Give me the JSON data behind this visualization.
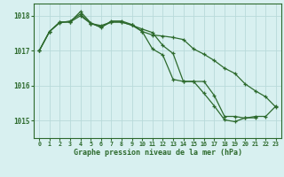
{
  "xlabel": "Graphe pression niveau de la mer (hPa)",
  "hours": [
    0,
    1,
    2,
    3,
    4,
    5,
    6,
    7,
    8,
    9,
    10,
    11,
    12,
    13,
    14,
    15,
    16,
    17,
    18,
    19,
    20,
    21,
    22,
    23
  ],
  "curve1": [
    1017.0,
    1017.55,
    1017.8,
    1017.85,
    1018.05,
    1017.78,
    1017.68,
    1017.82,
    1017.82,
    1017.73,
    1017.55,
    1017.45,
    1017.42,
    1017.38,
    1017.32,
    1017.05,
    1016.9,
    1016.72,
    1016.5,
    1016.35,
    1016.05,
    1015.85,
    1015.68,
    1015.38
  ],
  "curve2": [
    1017.0,
    1017.55,
    1017.82,
    1017.82,
    1018.12,
    1017.8,
    1017.66,
    1017.85,
    1017.85,
    1017.75,
    1017.55,
    1017.05,
    1016.88,
    1016.18,
    1016.12,
    1016.12,
    1015.78,
    1015.42,
    1015.02,
    1014.97,
    1015.08,
    1015.08,
    null,
    null
  ],
  "curve3": [
    1017.0,
    1017.55,
    1017.82,
    1017.82,
    1018.0,
    1017.78,
    1017.72,
    1017.82,
    1017.82,
    1017.73,
    1017.62,
    1017.52,
    1017.15,
    1016.92,
    1016.12,
    1016.12,
    1016.12,
    1015.72,
    1015.12,
    1015.12,
    1015.07,
    1015.12,
    1015.12,
    1015.42
  ],
  "line_color": "#2d6a2d",
  "marker": "+",
  "background_color": "#d8f0f0",
  "grid_color": "#b8dada",
  "tick_label_color": "#2d6a2d",
  "xlabel_color": "#2d6a2d",
  "ylim": [
    1014.5,
    1018.35
  ],
  "yticks": [
    1015,
    1016,
    1017,
    1018
  ],
  "xticks": [
    0,
    1,
    2,
    3,
    4,
    5,
    6,
    7,
    8,
    9,
    10,
    11,
    12,
    13,
    14,
    15,
    16,
    17,
    18,
    19,
    20,
    21,
    22,
    23
  ]
}
